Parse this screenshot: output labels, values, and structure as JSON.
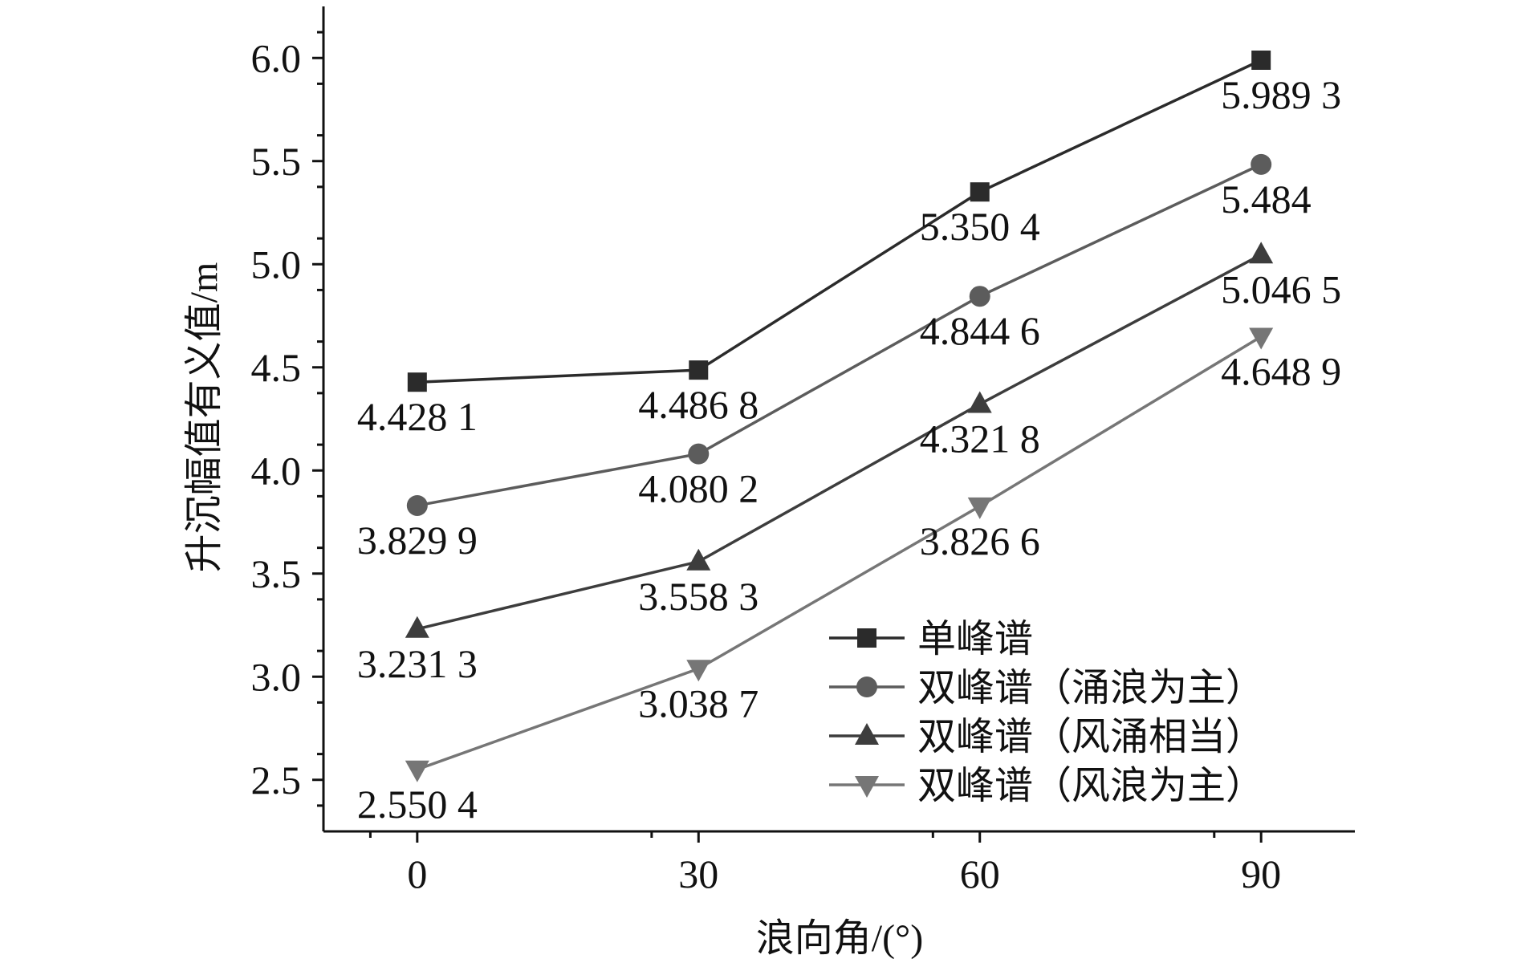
{
  "chart_data": {
    "type": "line",
    "xlabel": "浪向角/(°)",
    "ylabel": "升沉幅值有义值/m",
    "x": [
      0,
      30,
      60,
      90
    ],
    "xlim": [
      -10,
      100
    ],
    "ylim": [
      2.25,
      6.25
    ],
    "x_ticks": [
      "0",
      "30",
      "60",
      "90"
    ],
    "y_ticks": [
      "2.5",
      "3.0",
      "3.5",
      "4.0",
      "4.5",
      "5.0",
      "5.5",
      "6.0"
    ],
    "grid": false,
    "legend_position": "bottom-right",
    "series": [
      {
        "name": "单峰谱",
        "marker": "square",
        "color": "#2b2b2b",
        "values": [
          4.4281,
          4.4868,
          5.3504,
          5.9893
        ],
        "labels": [
          "4.428 1",
          "4.486 8",
          "5.350 4",
          "5.989 3"
        ]
      },
      {
        "name": "双峰谱（涌浪为主）",
        "marker": "circle",
        "color": "#5c5c5c",
        "values": [
          3.8299,
          4.0802,
          4.8446,
          5.484
        ],
        "labels": [
          "3.829 9",
          "4.080 2",
          "4.844 6",
          "5.484"
        ]
      },
      {
        "name": "双峰谱（风涌相当）",
        "marker": "triangle-up",
        "color": "#3d3d3d",
        "values": [
          3.2313,
          3.5583,
          4.3218,
          5.0465
        ],
        "labels": [
          "3.231 3",
          "3.558 3",
          "4.321 8",
          "5.046 5"
        ]
      },
      {
        "name": "双峰谱（风浪为主）",
        "marker": "triangle-down",
        "color": "#767676",
        "values": [
          2.5504,
          3.0387,
          3.8266,
          4.6489
        ],
        "labels": [
          "2.550 4",
          "3.038 7",
          "3.826 6",
          "4.648 9"
        ]
      }
    ]
  }
}
